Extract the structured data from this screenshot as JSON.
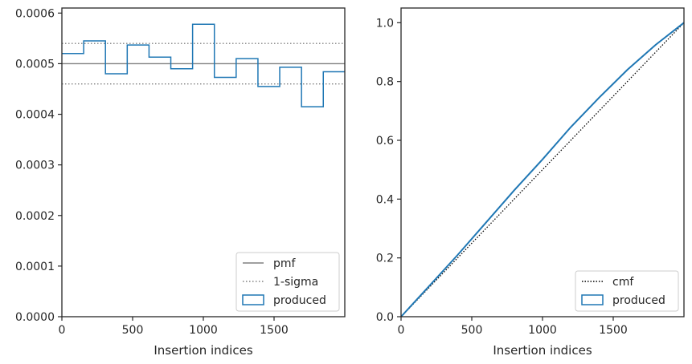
{
  "colors": {
    "series": "#1f77b4",
    "reference": "#808080",
    "cmf": "#000000",
    "spine": "#262626"
  },
  "chart_data": [
    {
      "type": "step-histogram",
      "xlabel": "Insertion indices",
      "ylabel": "",
      "xlim": [
        0,
        2000
      ],
      "ylim": [
        0,
        0.00061
      ],
      "xticks": [
        0,
        500,
        1000,
        1500
      ],
      "xtick_labels": [
        "0",
        "500",
        "1000",
        "1500"
      ],
      "yticks": [
        0,
        0.0001,
        0.0002,
        0.0003,
        0.0004,
        0.0005,
        0.0006
      ],
      "ytick_labels": [
        "0.0000",
        "0.0001",
        "0.0002",
        "0.0003",
        "0.0004",
        "0.0005",
        "0.0006"
      ],
      "bin_edges": [
        0,
        154,
        308,
        462,
        616,
        770,
        924,
        1078,
        1232,
        1386,
        1540,
        1694,
        1848,
        2000
      ],
      "values": [
        0.00052,
        0.000545,
        0.00048,
        0.000537,
        0.000513,
        0.00049,
        0.000578,
        0.000473,
        0.00051,
        0.000455,
        0.000493,
        0.000415,
        0.000484
      ],
      "pmf": 0.0005,
      "sigma_band": [
        0.00046,
        0.00054
      ],
      "legend": {
        "position": "lower-right",
        "entries": [
          {
            "label": "pmf",
            "style": "solid-gray"
          },
          {
            "label": "1-sigma",
            "style": "dotted-gray"
          },
          {
            "label": "produced",
            "style": "box-blue"
          }
        ]
      }
    },
    {
      "type": "line",
      "xlabel": "Insertion indices",
      "ylabel": "",
      "xlim": [
        0,
        2000
      ],
      "ylim": [
        0,
        1.05
      ],
      "xticks": [
        0,
        500,
        1000,
        1500
      ],
      "xtick_labels": [
        "0",
        "500",
        "1000",
        "1500"
      ],
      "yticks": [
        0,
        0.2,
        0.4,
        0.6,
        0.8,
        1.0
      ],
      "ytick_labels": [
        "0.0",
        "0.2",
        "0.4",
        "0.6",
        "0.8",
        "1.0"
      ],
      "x": [
        0,
        200,
        400,
        600,
        800,
        1000,
        1200,
        1400,
        1600,
        1800,
        2000
      ],
      "cmf": [
        0.0,
        0.1,
        0.2,
        0.3,
        0.4,
        0.5,
        0.6,
        0.7,
        0.8,
        0.9,
        1.0
      ],
      "produced": [
        0.0,
        0.105,
        0.21,
        0.32,
        0.43,
        0.535,
        0.645,
        0.745,
        0.84,
        0.925,
        1.0
      ],
      "legend": {
        "position": "lower-right",
        "entries": [
          {
            "label": "cmf",
            "style": "dotted-black"
          },
          {
            "label": "produced",
            "style": "box-blue"
          }
        ]
      }
    }
  ]
}
